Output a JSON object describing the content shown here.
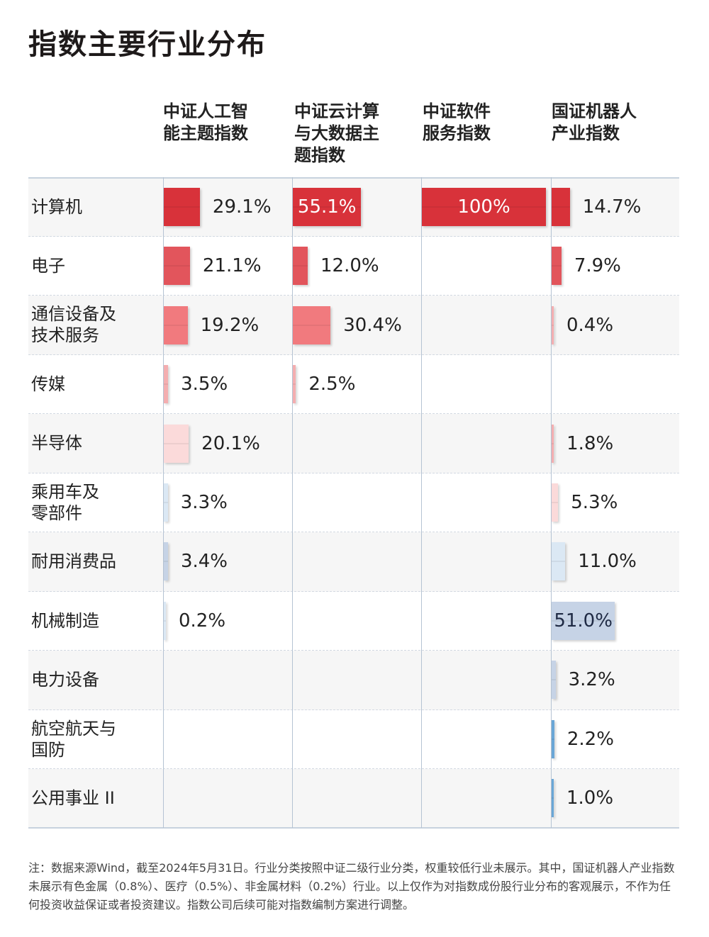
{
  "title": "指数主要行业分布",
  "columns": [
    {
      "line1": "中证人工智",
      "line2": "能主题指数",
      "line3": ""
    },
    {
      "line1": "中证云计算",
      "line2": "与大数据主",
      "line3": "题指数"
    },
    {
      "line1": "中证软件",
      "line2": "服务指数",
      "line3": ""
    },
    {
      "line1": "国证机器人",
      "line2": "产业指数",
      "line3": ""
    }
  ],
  "rows": [
    {
      "line1": "计算机",
      "line2": ""
    },
    {
      "line1": "电子",
      "line2": ""
    },
    {
      "line1": "通信设备及",
      "line2": "技术服务"
    },
    {
      "line1": "传媒",
      "line2": ""
    },
    {
      "line1": "半导体",
      "line2": ""
    },
    {
      "line1": "乘用车及",
      "line2": "零部件"
    },
    {
      "line1": "耐用消费品",
      "line2": ""
    },
    {
      "line1": "机械制造",
      "line2": ""
    },
    {
      "line1": "电力设备",
      "line2": ""
    },
    {
      "line1": "航空航天与",
      "line2": "国防"
    },
    {
      "line1": "公用事业 II",
      "line2": ""
    }
  ],
  "chart_data": {
    "type": "table",
    "title": "指数主要行业分布",
    "unit": "%",
    "categories": [
      "计算机",
      "电子",
      "通信设备及技术服务",
      "传媒",
      "半导体",
      "乘用车及零部件",
      "耐用消费品",
      "机械制造",
      "电力设备",
      "航空航天与国防",
      "公用事业 II"
    ],
    "series": [
      {
        "name": "中证人工智能主题指数",
        "values": [
          29.1,
          21.1,
          19.2,
          3.5,
          20.1,
          3.3,
          3.4,
          0.2,
          null,
          null,
          null
        ],
        "labels": [
          "29.1%",
          "21.1%",
          "19.2%",
          "3.5%",
          "20.1%",
          "3.3%",
          "3.4%",
          "0.2%",
          "",
          "",
          ""
        ]
      },
      {
        "name": "中证云计算与大数据主题指数",
        "values": [
          55.1,
          12.0,
          30.4,
          2.5,
          null,
          null,
          null,
          null,
          null,
          null,
          null
        ],
        "labels": [
          "55.1%",
          "12.0%",
          "30.4%",
          "2.5%",
          "",
          "",
          "",
          "",
          "",
          "",
          ""
        ]
      },
      {
        "name": "中证软件服务指数",
        "values": [
          100,
          null,
          null,
          null,
          null,
          null,
          null,
          null,
          null,
          null,
          null
        ],
        "labels": [
          "100%",
          "",
          "",
          "",
          "",
          "",
          "",
          "",
          "",
          "",
          ""
        ]
      },
      {
        "name": "国证机器人产业指数",
        "values": [
          14.7,
          7.9,
          0.4,
          null,
          1.8,
          5.3,
          11.0,
          51.0,
          3.2,
          2.2,
          1.0
        ],
        "labels": [
          "14.7%",
          "7.9%",
          "0.4%",
          "",
          "1.8%",
          "5.3%",
          "11.0%",
          "51.0%",
          "3.2%",
          "2.2%",
          "1.0%"
        ]
      }
    ],
    "colors": {
      "dark_red": "#d8323a",
      "red": "#e2555c",
      "light_red": "#f17a7e",
      "pink": "#f4aeb0",
      "pale_pink": "#fbdada",
      "pale_blue": "#dbe8f4",
      "gray_blue": "#c6d3e6",
      "blue": "#6aa6d6"
    }
  },
  "note": "注：数据来源Wind，截至2024年5月31日。行业分类按照中证二级行业分类，权重较低行业未展示。其中，国证机器人产业指数未展示有色金属（0.8%）、医疗（0.5%）、非金属材料（0.2%）行业。以上仅作为对指数成份股行业分布的客观展示，不作为任何投资收益保证或者投资建议。指数公司后续可能对指数编制方案进行调整。"
}
